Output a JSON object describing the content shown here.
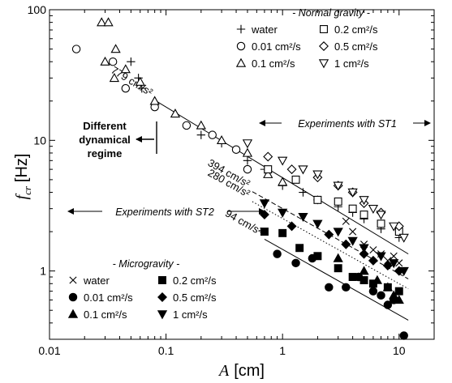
{
  "chart_data": {
    "type": "scatter",
    "x_scale": "log",
    "y_scale": "log",
    "xlim": [
      0.01,
      20
    ],
    "ylim": [
      0.3,
      100
    ],
    "xlabel_var": "A",
    "xlabel_unit": "[cm]",
    "ylabel_var": "f",
    "ylabel_sub": "cr",
    "ylabel_unit": "[Hz]",
    "x_ticks": [
      {
        "value": 0.01,
        "label": "0.01"
      },
      {
        "value": 0.1,
        "label": "0.1"
      },
      {
        "value": 1,
        "label": "1"
      },
      {
        "value": 10,
        "label": "10"
      }
    ],
    "y_ticks": [
      {
        "value": 1,
        "label": "1"
      },
      {
        "value": 10,
        "label": "10"
      },
      {
        "value": 100,
        "label": "100"
      }
    ],
    "legends": [
      {
        "title": "- Normal gravity -",
        "entries": [
          {
            "marker": "plus",
            "label": "water"
          },
          {
            "marker": "open-square",
            "label": "0.2 cm²/s"
          },
          {
            "marker": "open-circle",
            "label": "0.01 cm²/s"
          },
          {
            "marker": "open-diamond",
            "label": "0.5 cm²/s"
          },
          {
            "marker": "open-triangle-up",
            "label": "0.1 cm²/s"
          },
          {
            "marker": "open-triangle-down",
            "label": "1 cm²/s"
          }
        ]
      },
      {
        "title": "- Microgravity -",
        "entries": [
          {
            "marker": "cross",
            "label": "water"
          },
          {
            "marker": "filled-square",
            "label": "0.2 cm²/s"
          },
          {
            "marker": "filled-circle",
            "label": "0.01 cm²/s"
          },
          {
            "marker": "filled-diamond",
            "label": "0.5 cm²/s"
          },
          {
            "marker": "filled-triangle-up",
            "label": "0.1 cm²/s"
          },
          {
            "marker": "filled-triangle-down",
            "label": "1 cm²/s"
          }
        ]
      }
    ],
    "fit_lines": [
      {
        "label": "779 cm/s²",
        "style": "solid",
        "x": [
          0.08,
          12
        ],
        "y": [
          20.3,
          1.35
        ]
      },
      {
        "label": "394 cm/s²",
        "style": "dashed",
        "x": [
          0.55,
          12
        ],
        "y": [
          4.05,
          0.87
        ]
      },
      {
        "label": "280 cm/s²",
        "style": "dotted",
        "x": [
          0.55,
          12
        ],
        "y": [
          3.4,
          0.73
        ]
      },
      {
        "label": "94 cm/s²",
        "style": "solid",
        "x": [
          0.7,
          12
        ],
        "y": [
          1.75,
          0.42
        ]
      }
    ],
    "annotations": {
      "regime_text": [
        "Different",
        "dynamical",
        "regime"
      ],
      "st1_text": "Experiments with ST1",
      "st2_text": "Experiments with ST2"
    },
    "series": [
      {
        "name": "water",
        "gravity": "normal",
        "marker": "plus",
        "points": [
          [
            0.05,
            40
          ],
          [
            0.058,
            30
          ],
          [
            0.062,
            25
          ],
          [
            0.2,
            11
          ],
          [
            0.3,
            9.5
          ],
          [
            0.5,
            7
          ],
          [
            0.7,
            6
          ],
          [
            1,
            4.5
          ],
          [
            1.5,
            4
          ],
          [
            2,
            3.5
          ],
          [
            3,
            3.1
          ],
          [
            4,
            2.8
          ],
          [
            5,
            2.5
          ],
          [
            7,
            2.1
          ],
          [
            10,
            1.8
          ]
        ]
      },
      {
        "name": "0.01 cm²/s",
        "gravity": "normal",
        "marker": "open-circle",
        "points": [
          [
            0.017,
            50
          ],
          [
            0.035,
            40
          ],
          [
            0.045,
            25
          ],
          [
            0.08,
            18
          ],
          [
            0.15,
            13
          ],
          [
            0.25,
            11
          ],
          [
            0.4,
            8.5
          ],
          [
            0.5,
            6
          ]
        ]
      },
      {
        "name": "0.1 cm²/s",
        "gravity": "normal",
        "marker": "open-triangle-up",
        "points": [
          [
            0.028,
            80
          ],
          [
            0.032,
            80
          ],
          [
            0.037,
            50
          ],
          [
            0.03,
            40
          ],
          [
            0.036,
            30
          ],
          [
            0.045,
            35
          ],
          [
            0.06,
            28
          ],
          [
            0.08,
            20
          ],
          [
            0.12,
            16
          ],
          [
            0.2,
            13
          ],
          [
            0.3,
            10
          ],
          [
            0.5,
            8
          ],
          [
            0.75,
            5.5
          ],
          [
            1,
            4.8
          ]
        ]
      },
      {
        "name": "0.2 cm²/s",
        "gravity": "normal",
        "marker": "open-square",
        "points": [
          [
            0.75,
            6
          ],
          [
            1.3,
            5
          ],
          [
            2,
            3.5
          ],
          [
            3,
            3.4
          ],
          [
            4,
            3
          ],
          [
            5,
            2.7
          ],
          [
            7,
            2.3
          ],
          [
            10,
            2
          ]
        ]
      },
      {
        "name": "0.5 cm²/s",
        "gravity": "normal",
        "marker": "open-diamond",
        "points": [
          [
            0.75,
            7.5
          ],
          [
            1.2,
            6
          ],
          [
            2,
            5.2
          ],
          [
            3,
            4.5
          ],
          [
            4,
            4
          ],
          [
            5,
            3.3
          ],
          [
            7,
            2.8
          ],
          [
            10,
            2.2
          ]
        ]
      },
      {
        "name": "1 cm²/s",
        "gravity": "normal",
        "marker": "open-triangle-down",
        "points": [
          [
            0.5,
            9.5
          ],
          [
            1,
            7
          ],
          [
            1.5,
            6
          ],
          [
            2,
            5.5
          ],
          [
            3,
            4.5
          ],
          [
            4,
            4
          ],
          [
            5,
            3.5
          ],
          [
            6,
            3
          ],
          [
            7,
            2.7
          ],
          [
            9,
            2.2
          ],
          [
            11,
            1.8
          ]
        ]
      },
      {
        "name": "water",
        "gravity": "micro",
        "marker": "cross",
        "points": [
          [
            3.5,
            2.4
          ],
          [
            4,
            2
          ],
          [
            5,
            1.6
          ],
          [
            6,
            1.45
          ],
          [
            7,
            1.35
          ],
          [
            8,
            1.2
          ],
          [
            9,
            1.3
          ],
          [
            10,
            1.15
          ]
        ]
      },
      {
        "name": "0.01 cm²/s",
        "gravity": "micro",
        "marker": "filled-circle",
        "points": [
          [
            0.9,
            1.35
          ],
          [
            1.3,
            1.15
          ],
          [
            1.8,
            1.25
          ],
          [
            2.5,
            0.75
          ],
          [
            3.5,
            0.75
          ],
          [
            4.5,
            0.9
          ],
          [
            6,
            0.7
          ],
          [
            7,
            0.65
          ],
          [
            8,
            0.55
          ],
          [
            9,
            0.6
          ],
          [
            11,
            0.32
          ]
        ]
      },
      {
        "name": "0.1 cm²/s",
        "gravity": "micro",
        "marker": "filled-triangle-up",
        "points": [
          [
            3,
            1.25
          ],
          [
            5,
            1
          ],
          [
            6.5,
            0.85
          ],
          [
            8,
            0.75
          ],
          [
            9,
            0.65
          ],
          [
            10,
            0.6
          ]
        ]
      },
      {
        "name": "0.2 cm²/s",
        "gravity": "micro",
        "marker": "filled-square",
        "points": [
          [
            0.7,
            2
          ],
          [
            1,
            1.95
          ],
          [
            1.4,
            1.5
          ],
          [
            2,
            1.3
          ],
          [
            3,
            1.05
          ],
          [
            4,
            0.9
          ],
          [
            5,
            0.85
          ],
          [
            6,
            0.8
          ],
          [
            8,
            0.75
          ],
          [
            10,
            0.7
          ]
        ]
      },
      {
        "name": "0.5 cm²/s",
        "gravity": "micro",
        "marker": "filled-diamond",
        "points": [
          [
            0.7,
            2.7
          ],
          [
            1.2,
            2.2
          ],
          [
            2.5,
            1.9
          ],
          [
            3.5,
            1.6
          ],
          [
            5,
            1.35
          ],
          [
            6,
            1.2
          ],
          [
            8,
            1.1
          ],
          [
            10,
            1
          ]
        ]
      },
      {
        "name": "1 cm²/s",
        "gravity": "micro",
        "marker": "filled-triangle-down",
        "points": [
          [
            0.7,
            3.3
          ],
          [
            1,
            2.8
          ],
          [
            1.5,
            2.6
          ],
          [
            2,
            2.3
          ],
          [
            3,
            2
          ],
          [
            4,
            1.7
          ],
          [
            5,
            1.5
          ],
          [
            7,
            1.3
          ],
          [
            9,
            1.15
          ],
          [
            11,
            1
          ]
        ]
      }
    ]
  }
}
